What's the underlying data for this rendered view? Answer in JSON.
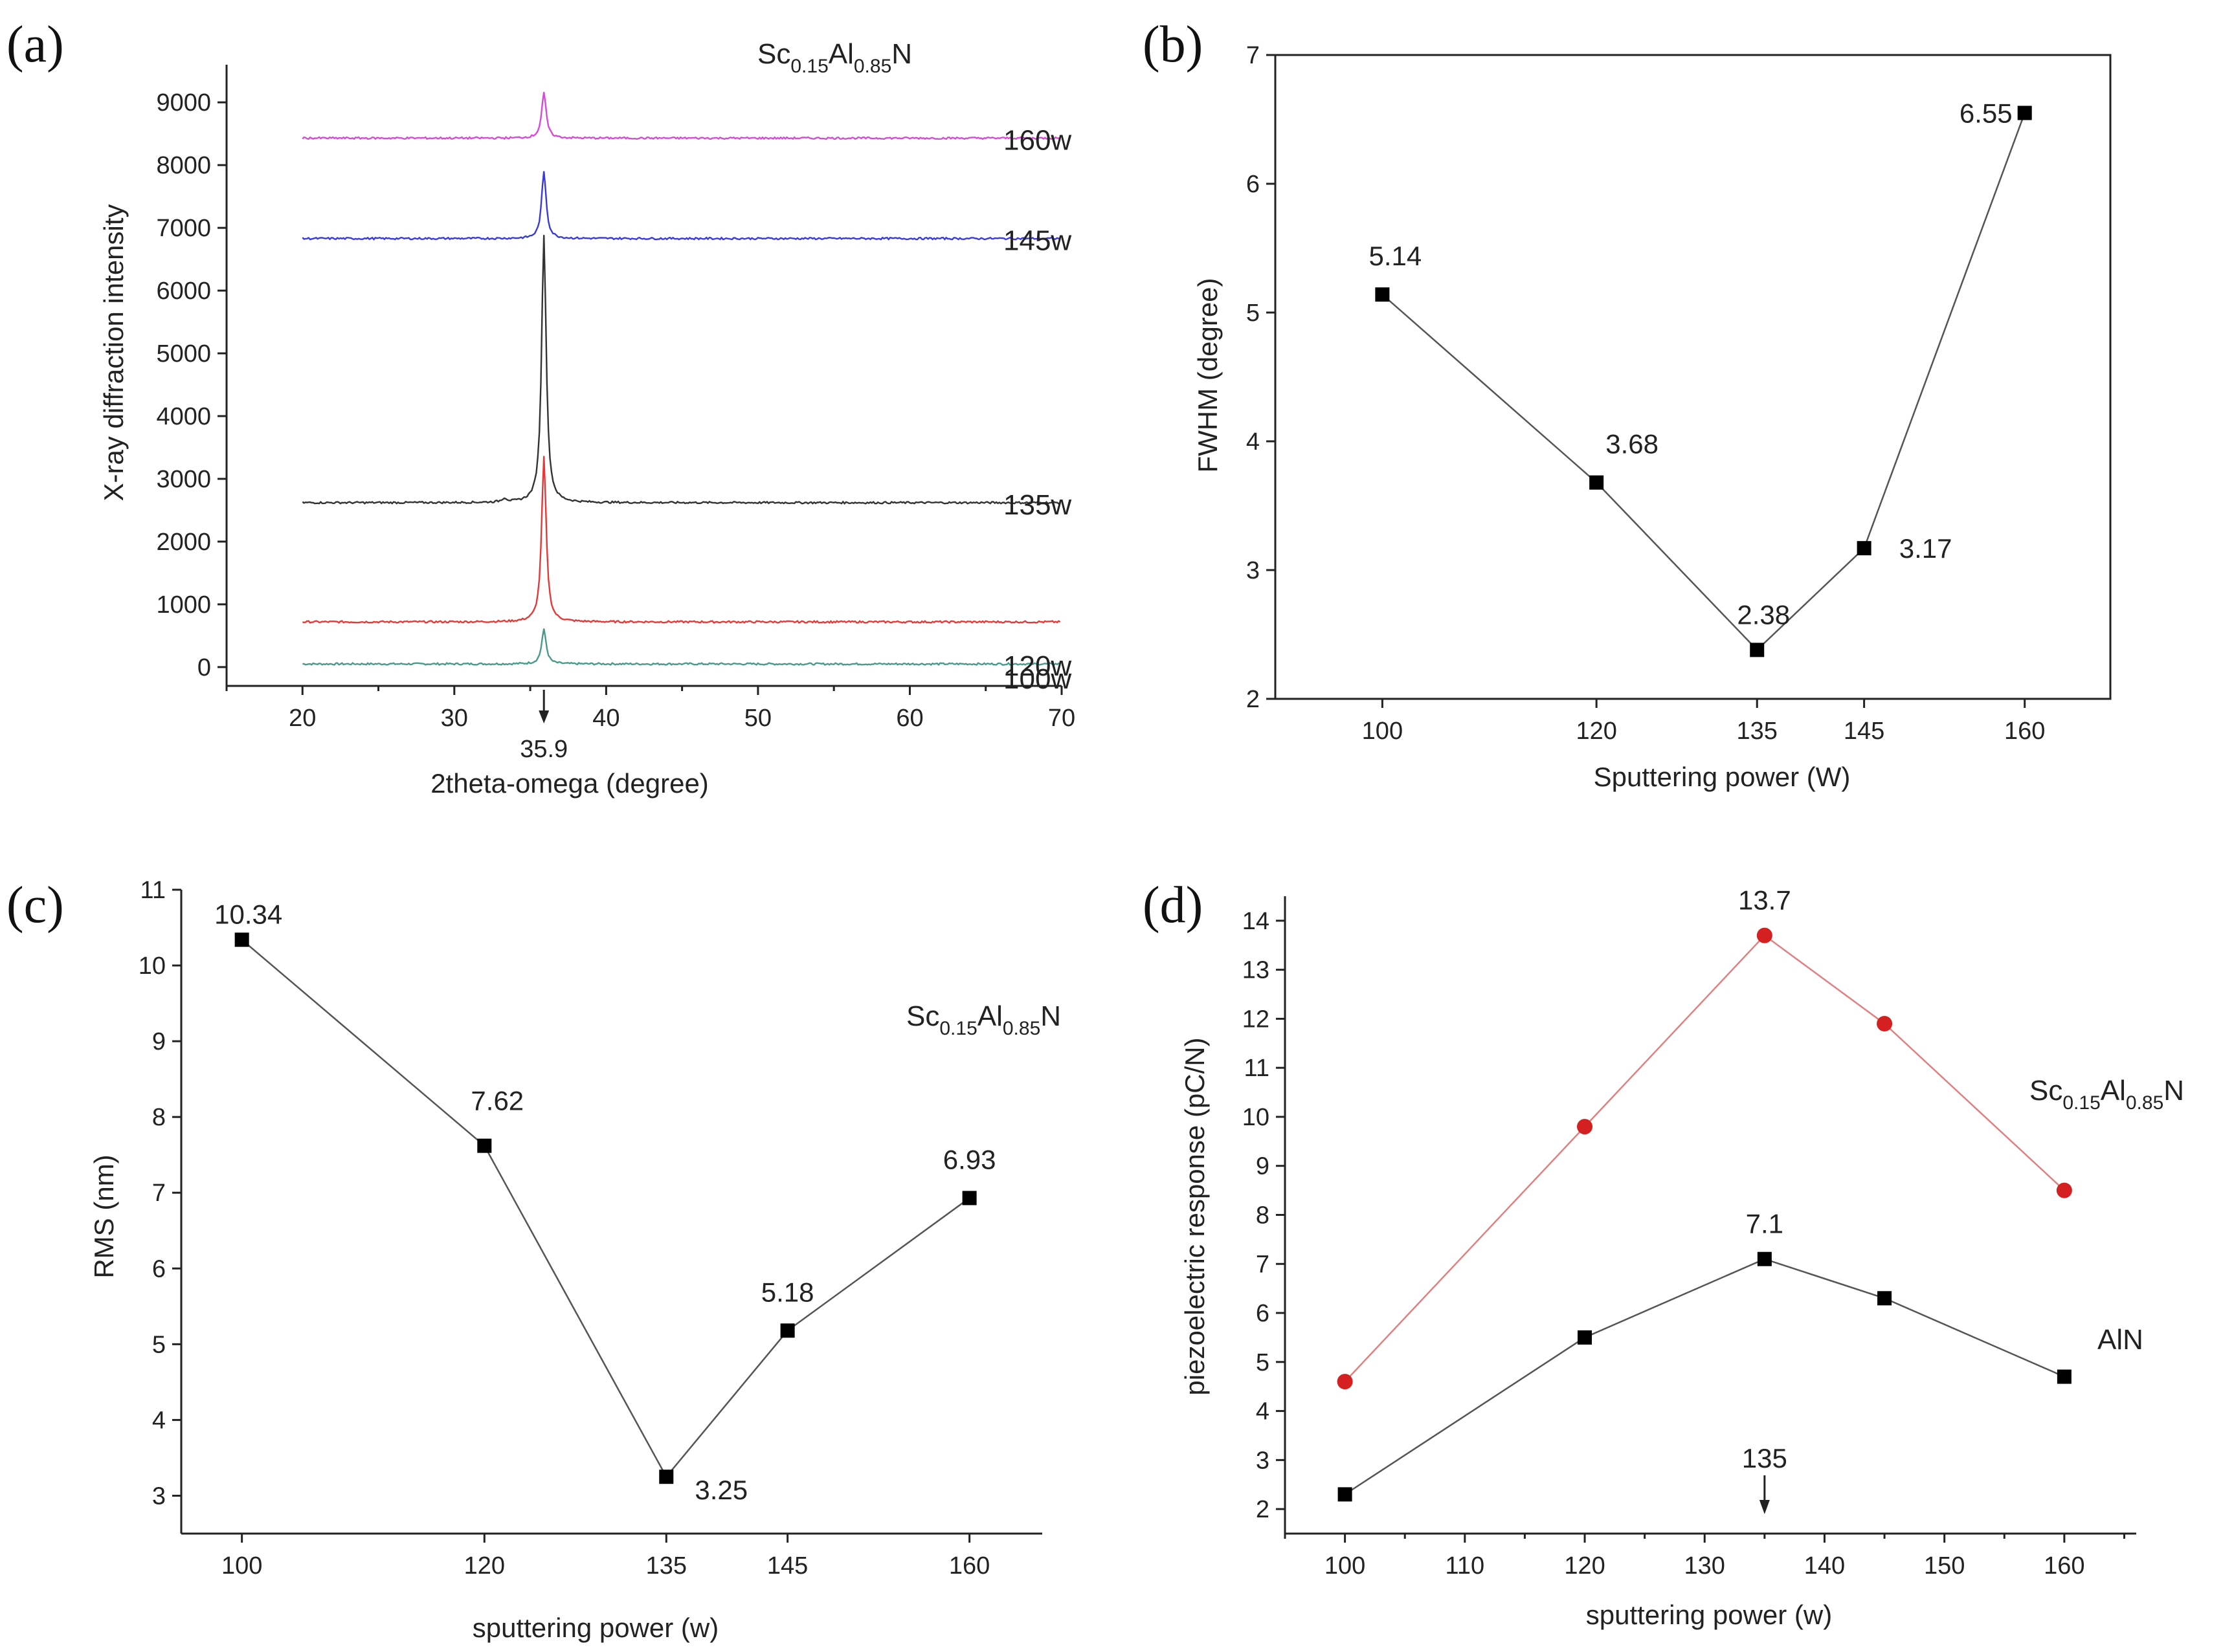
{
  "chart_data": [
    {
      "panel": "(a)",
      "type": "line",
      "title": "Sc0.15Al0.85N",
      "formula": {
        "sc": "Sc",
        "sc_sub": "0.15",
        "al": "Al",
        "al_sub": "0.85",
        "n": "N"
      },
      "xlabel": "2theta-omega (degree)",
      "ylabel": "X-ray diffraction intensity",
      "xlim": [
        15,
        70
      ],
      "ylim": [
        -300,
        9600
      ],
      "xticks": [
        20,
        30,
        40,
        50,
        60,
        70
      ],
      "yticks": [
        0,
        1000,
        2000,
        3000,
        4000,
        5000,
        6000,
        7000,
        8000,
        9000
      ],
      "peak_position": 35.9,
      "peak_label": "35.9",
      "series": [
        {
          "name": "100w",
          "color": "#4a9a8c",
          "baseline": 50,
          "peak": 600
        },
        {
          "name": "120w",
          "color": "#e23a3a",
          "baseline": 720,
          "peak": 3350
        },
        {
          "name": "135w",
          "color": "#333333",
          "baseline": 2620,
          "peak": 6900
        },
        {
          "name": "145w",
          "color": "#3a3ad8",
          "baseline": 6830,
          "peak": 7900
        },
        {
          "name": "160w",
          "color": "#d84ad8",
          "baseline": 8430,
          "peak": 9150
        }
      ]
    },
    {
      "panel": "(b)",
      "type": "line",
      "xlabel": "Sputtering power (W)",
      "ylabel": "FWHM (degree)",
      "xlim": [
        90,
        168
      ],
      "ylim": [
        2,
        7
      ],
      "xticks": [
        100,
        120,
        135,
        145,
        160
      ],
      "yticks": [
        2,
        3,
        4,
        5,
        6,
        7
      ],
      "x": [
        100,
        120,
        135,
        145,
        160
      ],
      "values": [
        5.14,
        3.68,
        2.38,
        3.17,
        6.55
      ],
      "labels": [
        "5.14",
        "3.68",
        "2.38",
        "3.17",
        "6.55"
      ]
    },
    {
      "panel": "(c)",
      "type": "line",
      "title": "Sc0.15Al0.85N",
      "formula": {
        "sc": "Sc",
        "sc_sub": "0.15",
        "al": "Al",
        "al_sub": "0.85",
        "n": "N"
      },
      "xlabel": "sputtering power (w)",
      "ylabel": "RMS (nm)",
      "xlim": [
        95,
        166
      ],
      "ylim": [
        2.5,
        11
      ],
      "xticks": [
        100,
        120,
        135,
        145,
        160
      ],
      "yticks": [
        3,
        4,
        5,
        6,
        7,
        8,
        9,
        10,
        11
      ],
      "x": [
        100,
        120,
        135,
        145,
        160
      ],
      "values": [
        10.34,
        7.62,
        3.25,
        5.18,
        6.93
      ],
      "labels": [
        "10.34",
        "7.62",
        "3.25",
        "5.18",
        "6.93"
      ]
    },
    {
      "panel": "(d)",
      "type": "line",
      "xlabel": "sputtering power (w)",
      "ylabel": "piezoelectric response (pC/N)",
      "xlim": [
        95,
        166
      ],
      "ylim": [
        1.5,
        14.5
      ],
      "xticks": [
        100,
        110,
        120,
        130,
        140,
        150,
        160
      ],
      "yticks": [
        2,
        3,
        4,
        5,
        6,
        7,
        8,
        9,
        10,
        11,
        12,
        13,
        14
      ],
      "arrow_x": 135,
      "arrow_label": "135",
      "series": [
        {
          "name": "Sc0.15Al0.85N",
          "formula": {
            "sc": "Sc",
            "sc_sub": "0.15",
            "al": "Al",
            "al_sub": "0.85",
            "n": "N"
          },
          "color": "#e05050",
          "marker": "circle",
          "x": [
            100,
            120,
            135,
            145,
            160
          ],
          "values": [
            4.6,
            9.8,
            13.7,
            11.9,
            8.5
          ],
          "peak_label": "13.7"
        },
        {
          "name": "AlN",
          "label": "AlN",
          "color": "#111111",
          "marker": "square",
          "x": [
            100,
            120,
            135,
            145,
            160
          ],
          "values": [
            2.3,
            5.5,
            7.1,
            6.3,
            4.7
          ],
          "peak_label": "7.1"
        }
      ]
    }
  ]
}
